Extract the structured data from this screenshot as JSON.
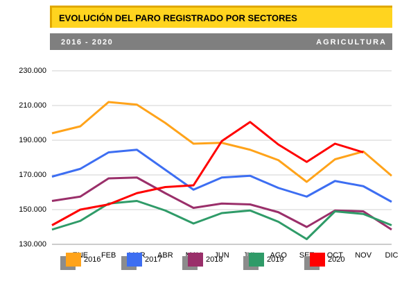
{
  "header": {
    "title": "EVOLUCIÓN DEL PARO REGISTRADO POR SECTORES",
    "period": "2016 - 2020",
    "sector": "AGRICULTURA"
  },
  "chart_data": {
    "type": "line",
    "categories": [
      null,
      "ENE",
      "FEB",
      "MAR",
      "ABR",
      "MAY",
      "JUN",
      "JUL",
      "AGO",
      "SET",
      "OCT",
      "NOV",
      "DIC"
    ],
    "series": [
      {
        "name": "2016",
        "color": "#ffa31a",
        "values": [
          194000,
          198000,
          212000,
          210500,
          200000,
          188000,
          188500,
          184500,
          178500,
          166000,
          179000,
          183500,
          169500
        ]
      },
      {
        "name": "2017",
        "color": "#3d6ef2",
        "values": [
          169000,
          173500,
          183000,
          184500,
          173000,
          161500,
          168500,
          169500,
          162500,
          157500,
          166500,
          163500,
          154500
        ]
      },
      {
        "name": "2018",
        "color": "#9a2f6a",
        "values": [
          155000,
          157500,
          168000,
          168500,
          159500,
          151000,
          153500,
          153000,
          148500,
          140000,
          149500,
          149000,
          138500
        ]
      },
      {
        "name": "2019",
        "color": "#2f9b68",
        "values": [
          138500,
          143500,
          153500,
          155000,
          149500,
          142000,
          148000,
          149500,
          143000,
          133000,
          149000,
          147500,
          141000
        ]
      },
      {
        "name": "2020",
        "color": "#ff0000",
        "values": [
          141000,
          150000,
          153000,
          159500,
          163000,
          164000,
          189500,
          200500,
          187500,
          177500,
          188000,
          183000,
          null
        ]
      }
    ],
    "ylim": [
      130000,
      230000
    ],
    "yticks": [
      {
        "value": 130000,
        "label": "130.000"
      },
      {
        "value": 150000,
        "label": "150.000"
      },
      {
        "value": 170000,
        "label": "170.000"
      },
      {
        "value": 190000,
        "label": "190.000"
      },
      {
        "value": 210000,
        "label": "210.000"
      },
      {
        "value": 230000,
        "label": "230.000"
      }
    ],
    "grid": true
  }
}
